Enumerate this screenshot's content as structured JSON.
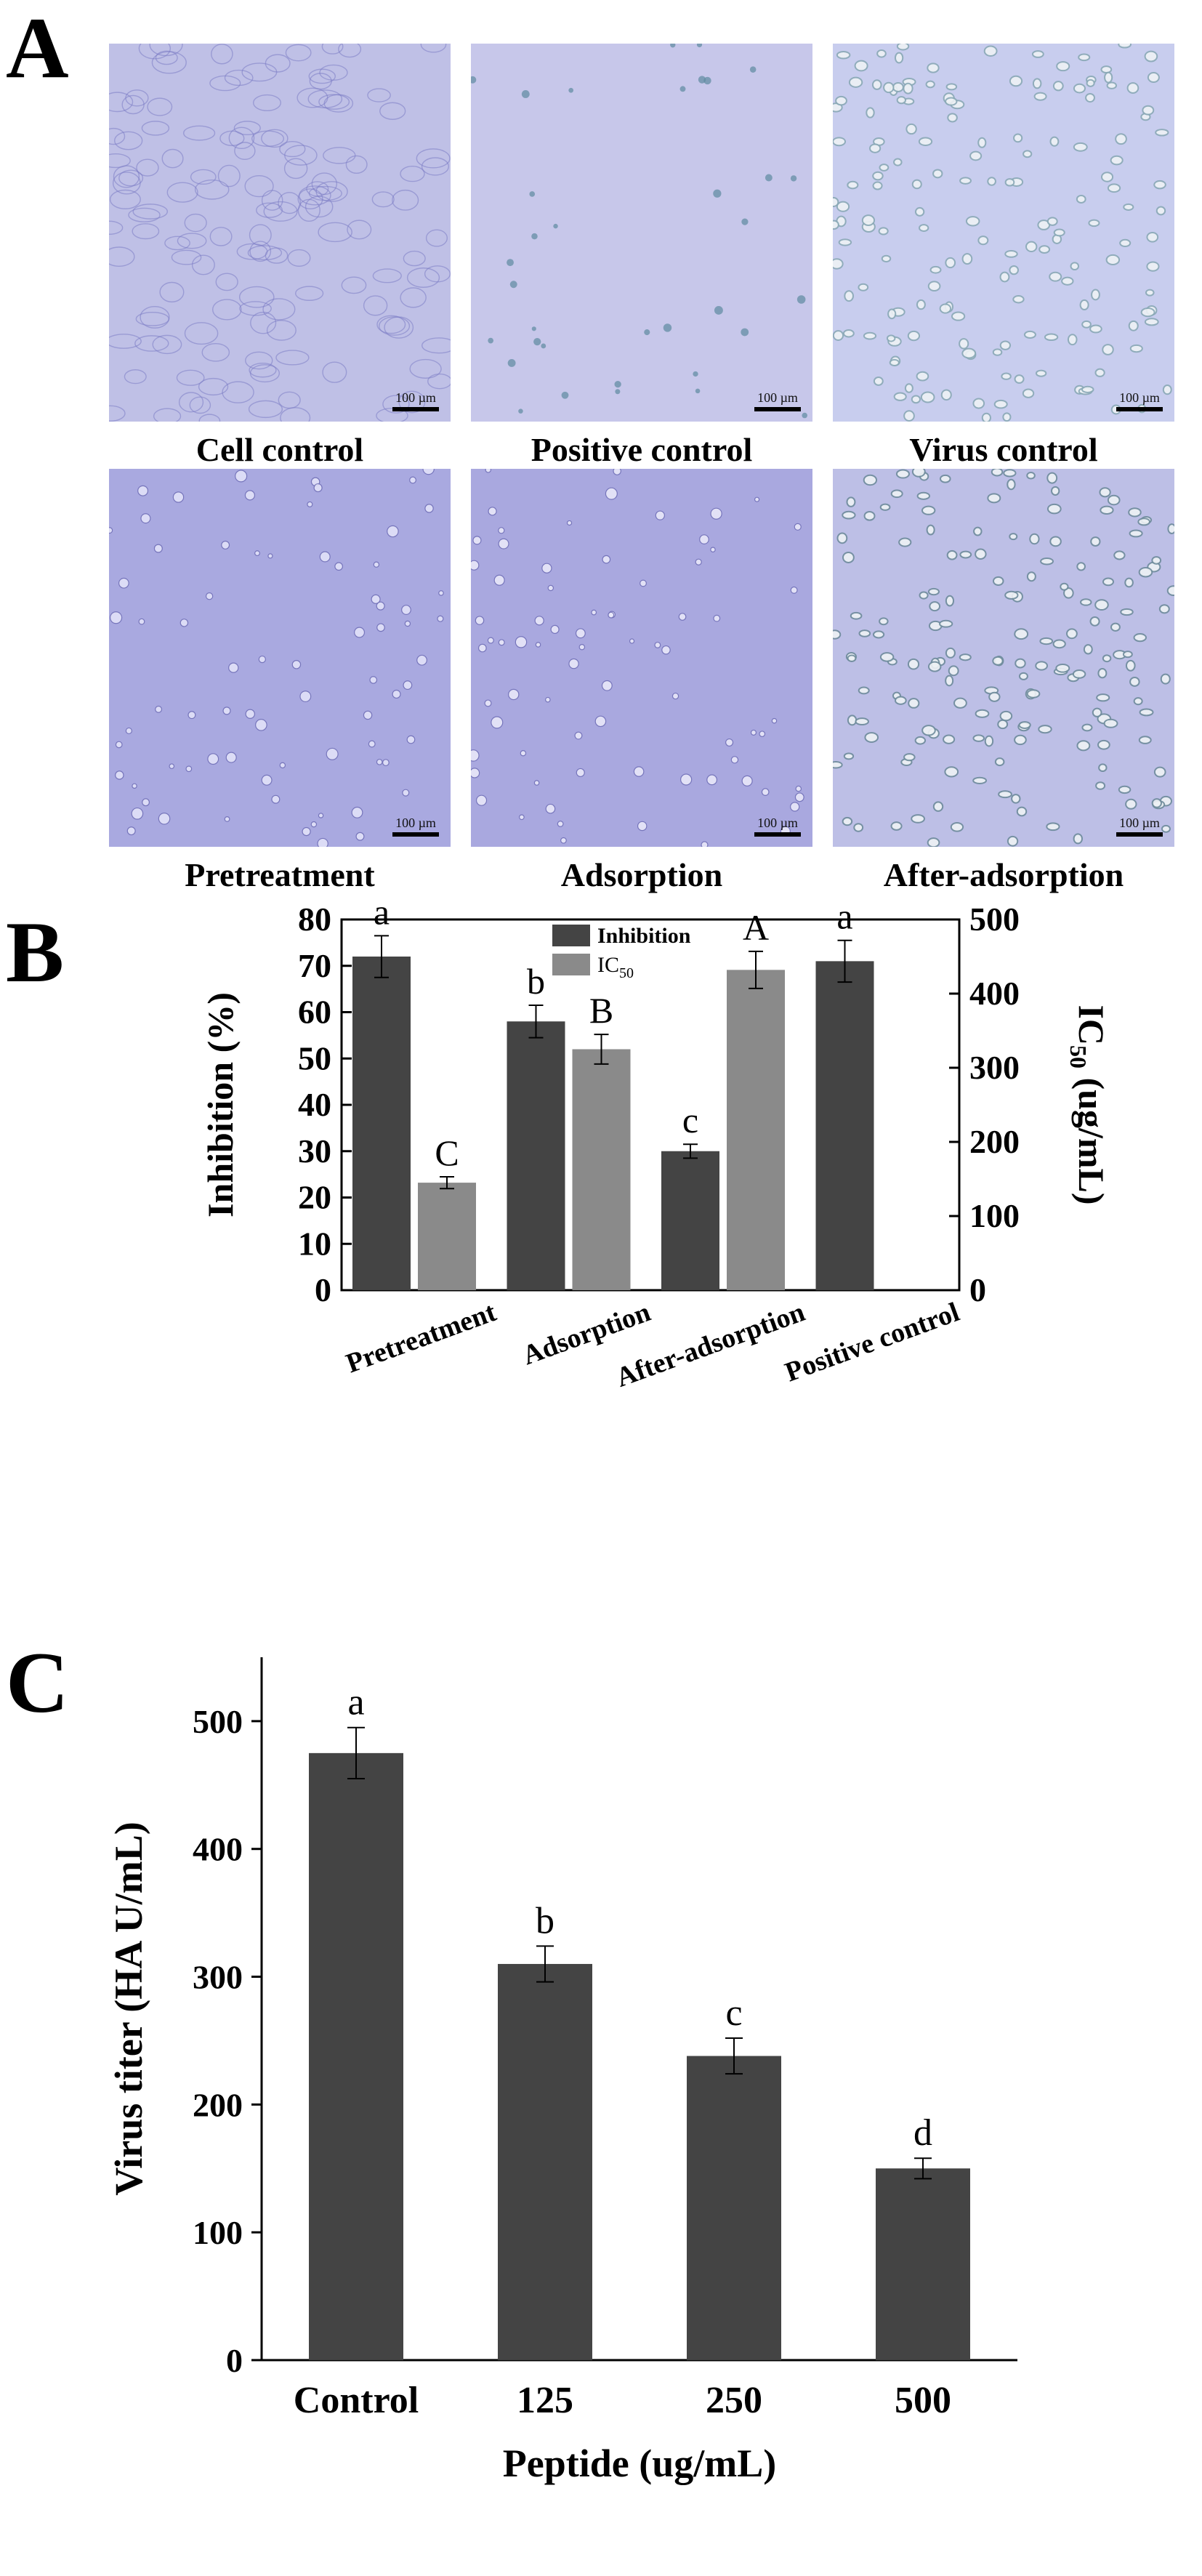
{
  "panels": {
    "a": "A",
    "b": "B",
    "c": "C"
  },
  "panel_a": {
    "images": [
      {
        "label": "Cell control",
        "scale": "100 µm",
        "tone": "#bfc0e6",
        "cell": "#7c7cc4",
        "kind": "sheet"
      },
      {
        "label": "Positive control",
        "scale": "100 µm",
        "tone": "#c7c7ea",
        "cell": "#5e8aa0",
        "kind": "sparse"
      },
      {
        "label": "Virus control",
        "scale": "100 µm",
        "tone": "#c8cdee",
        "cell": "#8aa9b6",
        "kind": "dense"
      },
      {
        "label": "Pretreatment",
        "scale": "100 µm",
        "tone": "#a9a9e0",
        "cell": "#e6e6fa",
        "kind": "spots"
      },
      {
        "label": "Adsorption",
        "scale": "100 µm",
        "tone": "#a9a8df",
        "cell": "#ececfb",
        "kind": "spots"
      },
      {
        "label": "After-adsorption",
        "scale": "100 µm",
        "tone": "#bdbfe6",
        "cell": "#6f8c9c",
        "kind": "dense"
      }
    ]
  },
  "chart_data": [
    {
      "type": "bar",
      "panel": "B",
      "categories": [
        "Pretreatment",
        "Adsorption",
        "After-adsorption",
        "Positive control"
      ],
      "series": [
        {
          "name": "Inhibition",
          "axis": "left",
          "color": "#444444",
          "values": [
            72,
            58,
            30,
            71
          ],
          "errors": [
            4.5,
            3.5,
            1.5,
            4.5
          ],
          "letters": [
            "a",
            "b",
            "c",
            "a"
          ]
        },
        {
          "name": "IC50",
          "axis": "right",
          "color": "#8a8a8a",
          "values": [
            145,
            325,
            432,
            null
          ],
          "errors": [
            8,
            20,
            25,
            null
          ],
          "letters": [
            "C",
            "B",
            "A",
            null
          ]
        }
      ],
      "legend": {
        "inhibition": "Inhibition",
        "ic_prefix": "IC",
        "ic_sub": "50"
      },
      "ylabel": "Inhibition (%)",
      "y2label_prefix": "IC",
      "y2label_sub": "50",
      "y2label_suffix": " (ug/mL)",
      "ylim": [
        0,
        80
      ],
      "yticks": [
        "0",
        "10",
        "20",
        "30",
        "40",
        "50",
        "60",
        "70",
        "80"
      ],
      "y2lim": [
        0,
        500
      ],
      "y2ticks": [
        "0",
        "100",
        "200",
        "300",
        "400",
        "500"
      ]
    },
    {
      "type": "bar",
      "panel": "C",
      "categories": [
        "Control",
        "125",
        "250",
        "500"
      ],
      "values": [
        475,
        310,
        238,
        150
      ],
      "errors": [
        20,
        14,
        14,
        8
      ],
      "letters": [
        "a",
        "b",
        "c",
        "d"
      ],
      "color": "#444444",
      "xlabel": "Peptide (ug/mL)",
      "ylabel": "Virus titer (HA U/mL)",
      "ylim": [
        0,
        550
      ],
      "yticks": [
        "0",
        "100",
        "200",
        "300",
        "400",
        "500"
      ]
    }
  ]
}
